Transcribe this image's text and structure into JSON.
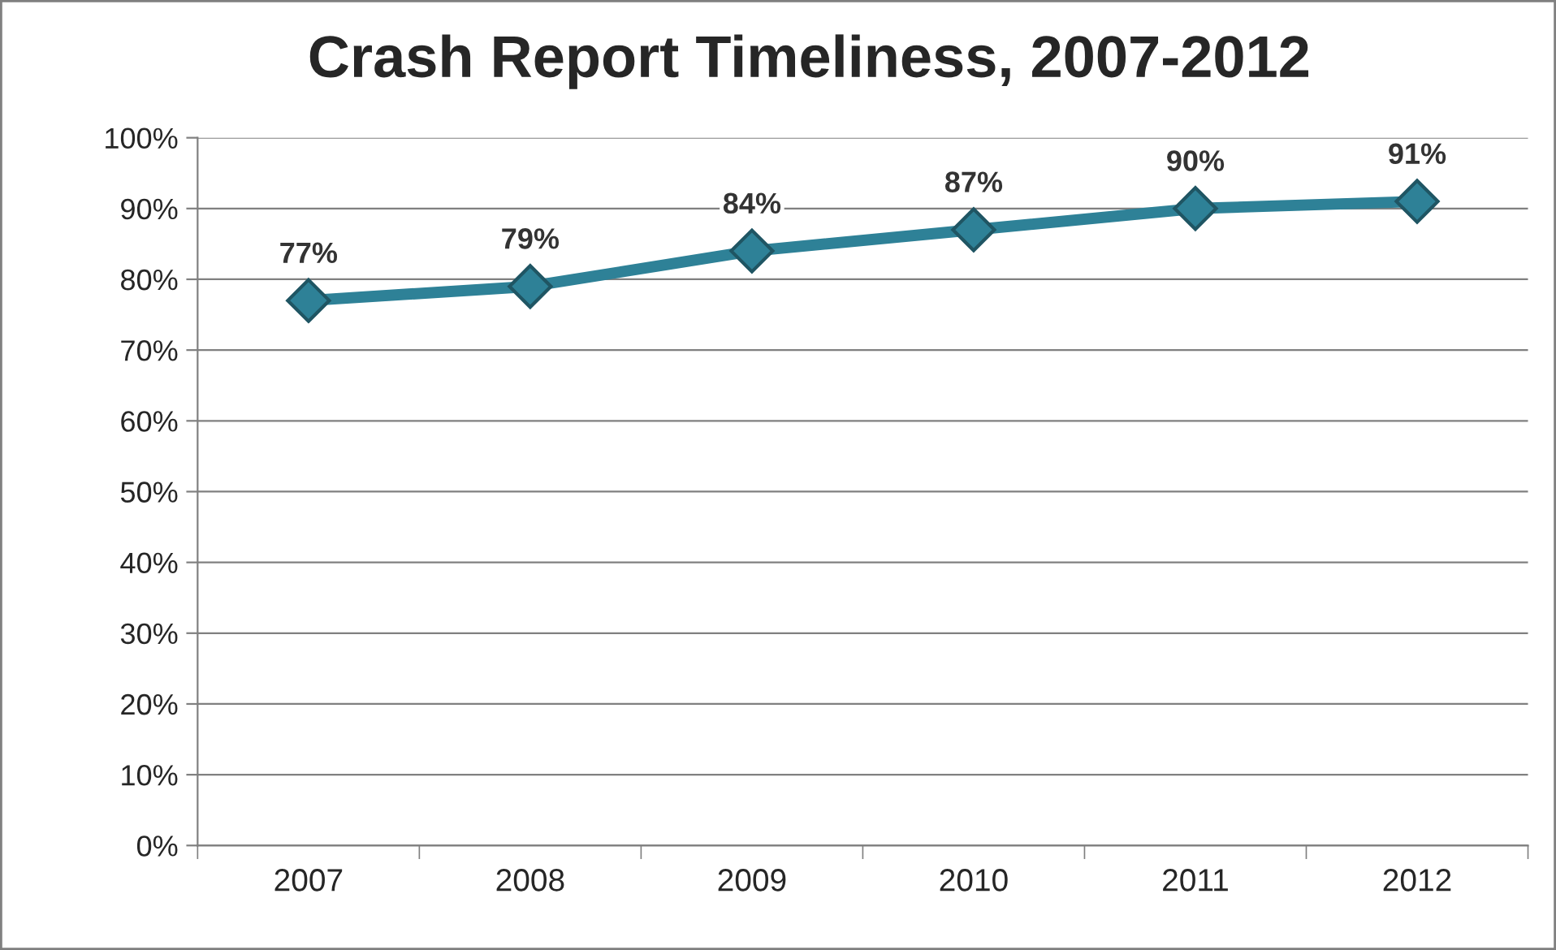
{
  "chart_data": {
    "type": "line",
    "title": "Crash Report Timeliness, 2007-2012",
    "categories": [
      "2007",
      "2008",
      "2009",
      "2010",
      "2011",
      "2012"
    ],
    "series": [
      {
        "color": "#2e8197",
        "values": [
          77,
          79,
          84,
          87,
          90,
          91
        ],
        "value_labels": [
          "77%",
          "79%",
          "84%",
          "87%",
          "90%",
          "91%"
        ]
      }
    ],
    "ylim": [
      0,
      100
    ],
    "yticks": [
      {
        "value": 0,
        "label": "0%"
      },
      {
        "value": 10,
        "label": "10%"
      },
      {
        "value": 20,
        "label": "20%"
      },
      {
        "value": 30,
        "label": "30%"
      },
      {
        "value": 40,
        "label": "40%"
      },
      {
        "value": 50,
        "label": "50%"
      },
      {
        "value": 60,
        "label": "60%"
      },
      {
        "value": 70,
        "label": "70%"
      },
      {
        "value": 80,
        "label": "80%"
      },
      {
        "value": 90,
        "label": "90%"
      },
      {
        "value": 100,
        "label": "100%"
      }
    ],
    "grid": "y",
    "marker": "diamond",
    "line_style": "solid",
    "legend": false
  }
}
